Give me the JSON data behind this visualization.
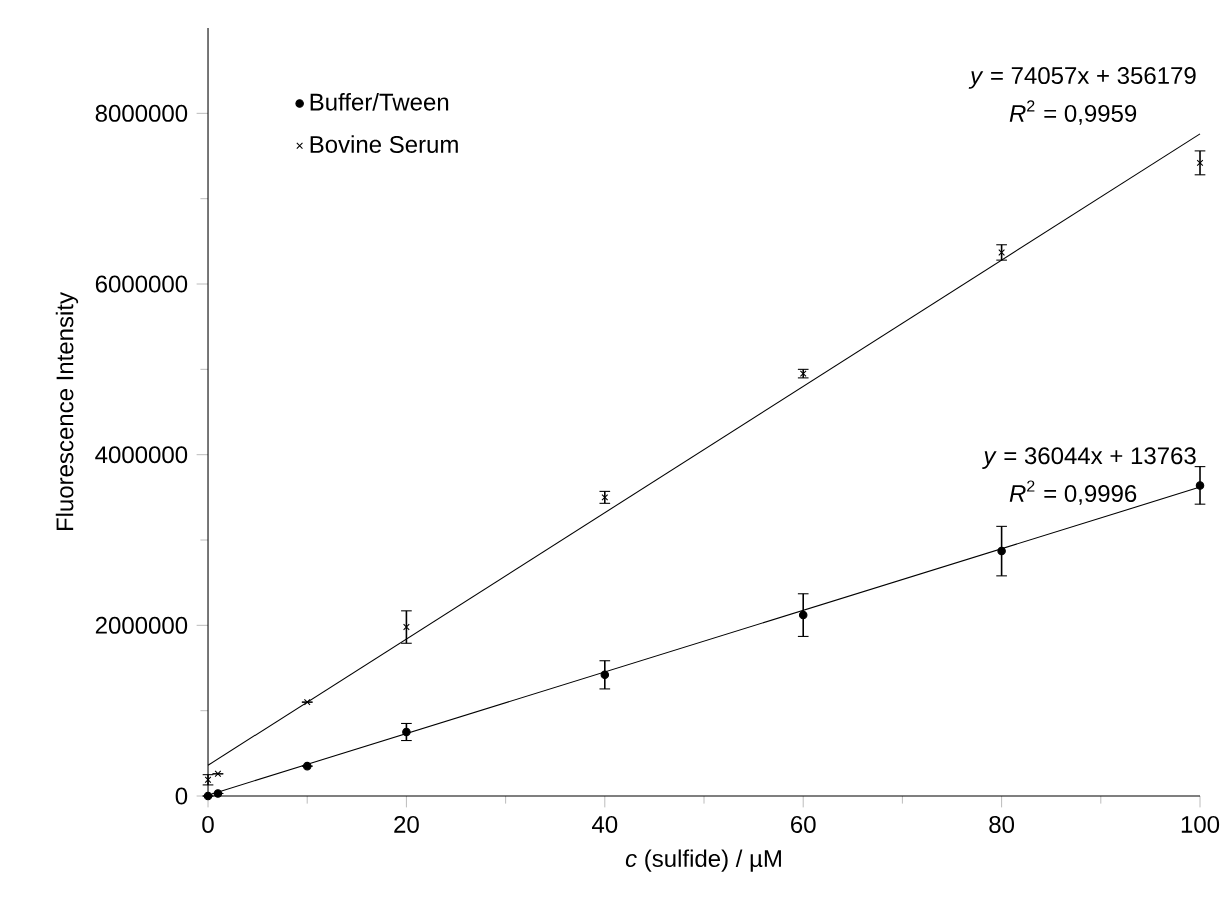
{
  "chart_data": {
    "type": "scatter",
    "xlabel": "*c* (sulfide) / µM",
    "ylabel": "Fluorescence Intensity",
    "xlim": [
      0,
      100
    ],
    "ylim": [
      0,
      9000000
    ],
    "xticks": [
      0,
      20,
      40,
      60,
      80,
      100
    ],
    "yticks": [
      0,
      2000000,
      4000000,
      6000000,
      8000000
    ],
    "grid": false,
    "legend": "top left",
    "series": [
      {
        "name": "Buffer/Tween",
        "marker": "circle",
        "color": "#000000",
        "x": [
          0,
          1,
          10,
          20,
          40,
          60,
          80,
          100
        ],
        "values": [
          0,
          30000,
          350000,
          750000,
          1420000,
          2120000,
          2870000,
          3640000
        ],
        "errors": [
          null,
          null,
          null,
          100000,
          165000,
          250000,
          290000,
          220000
        ]
      },
      {
        "name": "Bovine Serum",
        "marker": "cross",
        "color": "#000000",
        "x": [
          0,
          1,
          10,
          20,
          40,
          60,
          80,
          100
        ],
        "values": [
          190000,
          260000,
          1100000,
          1980000,
          3500000,
          4950000,
          6370000,
          7420000
        ],
        "errors": [
          60000,
          null,
          null,
          190000,
          70000,
          50000,
          90000,
          140000
        ]
      },
      {
        "type": "line",
        "color": "#000000",
        "x": [
          0,
          100
        ],
        "values": [
          10000,
          3620000
        ]
      },
      {
        "type": "line",
        "color": "#000000",
        "x": [
          0,
          100
        ],
        "values": [
          360000,
          7760000
        ]
      }
    ],
    "annotations": [
      "*y* = 74057x + 356179",
      "*R*$^{2}$ = 0,9959",
      "*y* = 36044x + 13763",
      "*R*$^{2}$ = 0,9996"
    ]
  }
}
